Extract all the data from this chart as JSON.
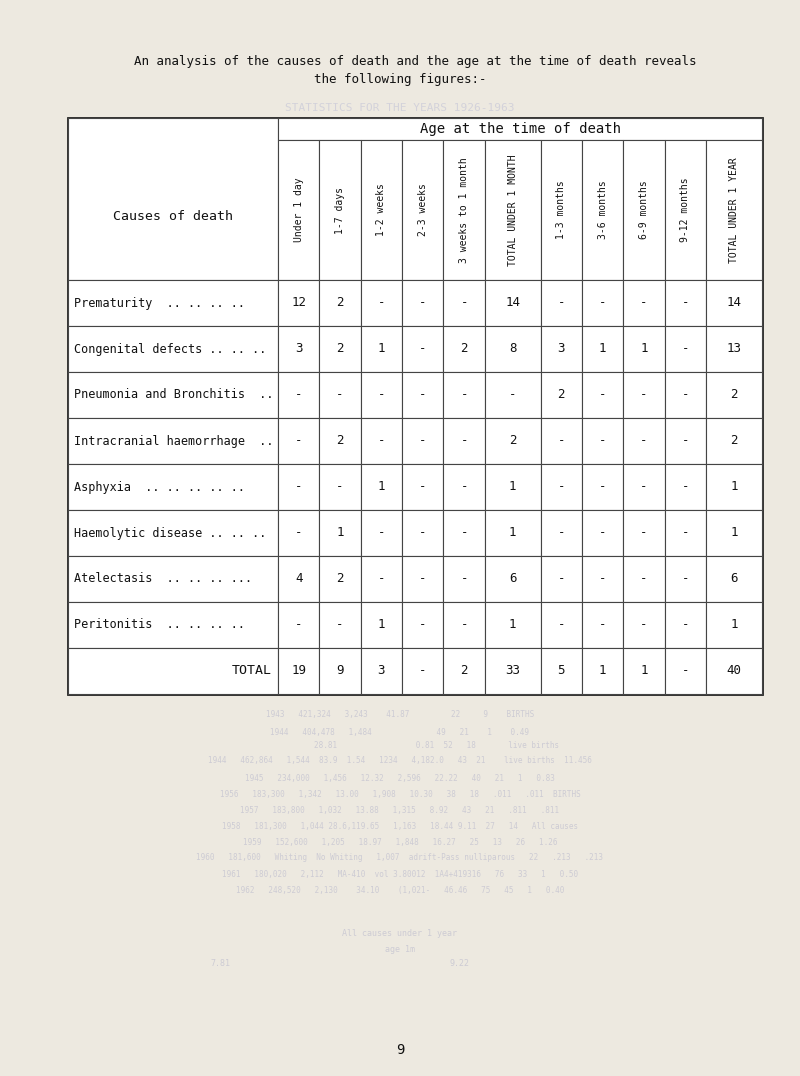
{
  "title_line1": "    An analysis of the causes of death and the age at the time of death reveals",
  "title_line2": "the following figures:-",
  "header_main": "Age at the time of death",
  "col_headers": [
    "Under 1 day",
    "1-7 days",
    "1-2 weeks",
    "2-3 weeks",
    "3 weeks to 1 month",
    "TOTAL UNDER 1 MONTH",
    "1-3 months",
    "3-6 months",
    "6-9 months",
    "9-12 months",
    "TOTAL UNDER 1 YEAR"
  ],
  "row_labels_display": [
    "Prematurity  .. .. .. ..",
    "Congenital defects .. .. ..",
    "Pneumonia and Bronchitis  ..",
    "Intracranial haemorrhage  ..",
    "Asphyxia  .. .. .. .. ..",
    "Haemolytic disease .. .. ..",
    "Atelectasis  .. .. .. ...",
    "Peritonitis  .. .. .. .."
  ],
  "data": [
    [
      "12",
      "2",
      "-",
      "-",
      "-",
      "14",
      "-",
      "-",
      "-",
      "-",
      "14"
    ],
    [
      "3",
      "2",
      "1",
      "-",
      "2",
      "8",
      "3",
      "1",
      "1",
      "-",
      "13"
    ],
    [
      "-",
      "-",
      "-",
      "-",
      "-",
      "-",
      "2",
      "-",
      "-",
      "-",
      "2"
    ],
    [
      "-",
      "2",
      "-",
      "-",
      "-",
      "2",
      "-",
      "-",
      "-",
      "-",
      "2"
    ],
    [
      "-",
      "-",
      "1",
      "-",
      "-",
      "1",
      "-",
      "-",
      "-",
      "-",
      "1"
    ],
    [
      "-",
      "1",
      "-",
      "-",
      "-",
      "1",
      "-",
      "-",
      "-",
      "-",
      "1"
    ],
    [
      "4",
      "2",
      "-",
      "-",
      "-",
      "6",
      "-",
      "-",
      "-",
      "-",
      "6"
    ],
    [
      "-",
      "-",
      "1",
      "-",
      "-",
      "1",
      "-",
      "-",
      "-",
      "-",
      "1"
    ]
  ],
  "total_row": [
    "19",
    "9",
    "3",
    "-",
    "2",
    "33",
    "5",
    "1",
    "1",
    "-",
    "40"
  ],
  "total_label": "TOTAL",
  "page_number": "9",
  "bg_color": "#ede9e0",
  "table_bg": "#ffffff",
  "text_color": "#111111",
  "ghost_color": "#c8c8d8"
}
